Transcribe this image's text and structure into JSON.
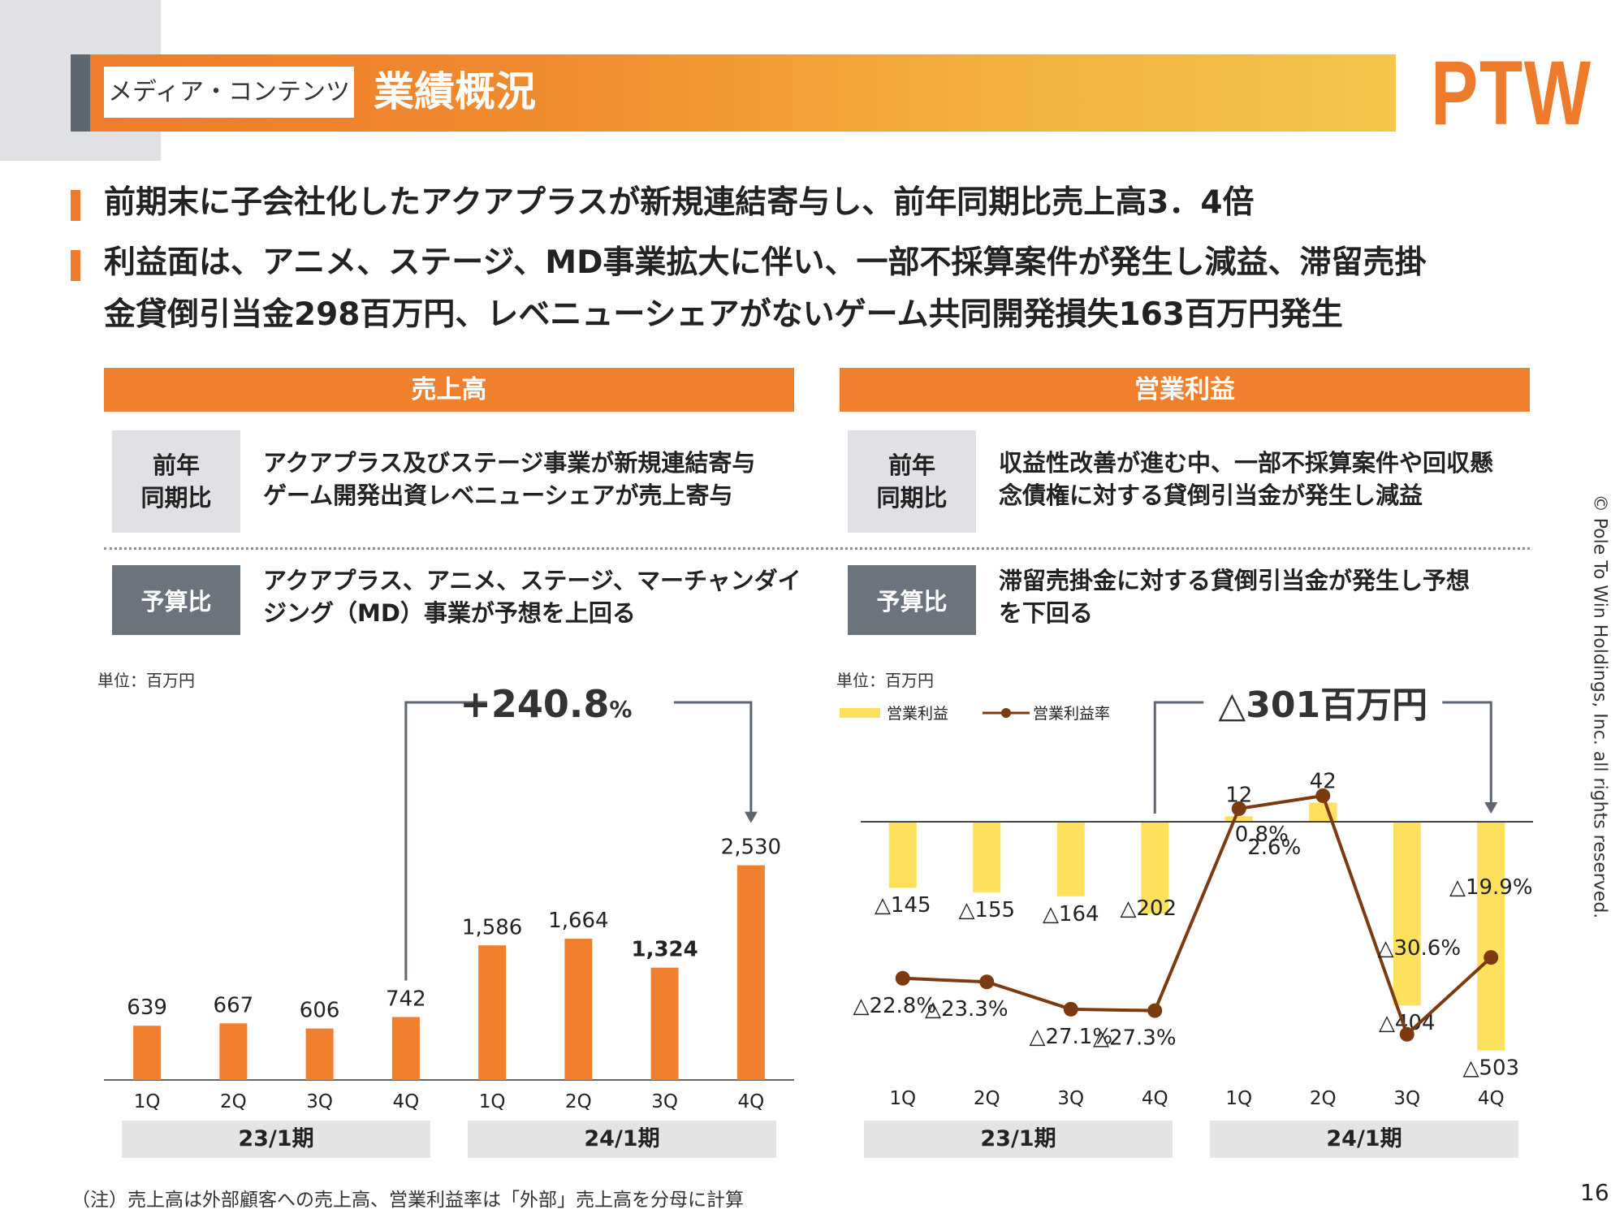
{
  "header": {
    "tag": "メディア・コンテンツ",
    "title": "業績概況",
    "logo": "PTW"
  },
  "bullets": [
    "前期末に子会社化したアクアプラスが新規連結寄与し、前年同期比売上高3．4倍",
    "利益面は、アニメ、ステージ、MD事業拡大に伴い、一部不採算案件が発生し減益、滞留売掛",
    "金貸倒引当金298百万円、レベニューシェアがないゲーム共同開発損失163百万円発生"
  ],
  "sections": {
    "sales": {
      "title": "売上高",
      "yoy_label_1": "前年",
      "yoy_label_2": "同期比",
      "yoy_text_1": "アクアプラス及びステージ事業が新規連結寄与",
      "yoy_text_2": "ゲーム開発出資レベニューシェアが売上寄与",
      "budget_label": "予算比",
      "budget_text_1": "アクアプラス、アニメ、ステージ、マーチャンダイ",
      "budget_text_2": "ジング（MD）事業が予想を上回る"
    },
    "profit": {
      "title": "営業利益",
      "yoy_label_1": "前年",
      "yoy_label_2": "同期比",
      "yoy_text_1": "収益性改善が進む中、一部不採算案件や回収懸",
      "yoy_text_2": "念債権に対する貸倒引当金が発生し減益",
      "budget_label": "予算比",
      "budget_text_1": "滞留売掛金に対する貸倒引当金が発生し予想",
      "budget_text_2": "を下回る"
    }
  },
  "chart_data": [
    {
      "type": "bar",
      "unit_label": "単位：百万円",
      "categories": [
        "1Q",
        "2Q",
        "3Q",
        "4Q",
        "1Q",
        "2Q",
        "3Q",
        "4Q"
      ],
      "periods": [
        "23/1期",
        "24/1期"
      ],
      "values": [
        639,
        667,
        606,
        742,
        1586,
        1664,
        1324,
        2530
      ],
      "value_labels": [
        "639",
        "667",
        "606",
        "742",
        "1,586",
        "1,664",
        "1,324",
        "2,530"
      ],
      "annotation_prefix": "+240.8",
      "annotation_suffix": "%",
      "color": "#f07f2e"
    },
    {
      "type": "bar+line",
      "unit_label": "単位：百万円",
      "categories": [
        "1Q",
        "2Q",
        "3Q",
        "4Q",
        "1Q",
        "2Q",
        "3Q",
        "4Q"
      ],
      "periods": [
        "23/1期",
        "24/1期"
      ],
      "legend": [
        "営業利益",
        "営業利益率"
      ],
      "series": [
        {
          "name": "営業利益",
          "type": "bar",
          "values": [
            -145,
            -155,
            -164,
            -202,
            12,
            42,
            -404,
            -503
          ],
          "value_labels": [
            "△145",
            "△155",
            "△164",
            "△202",
            "12",
            "42",
            "△404",
            "△503"
          ],
          "color": "#fde05c"
        },
        {
          "name": "営業利益率",
          "type": "line",
          "values": [
            -22.8,
            -23.3,
            -27.1,
            -27.3,
            0.8,
            2.6,
            -30.6,
            -19.9
          ],
          "value_labels": [
            "△22.8%",
            "△23.3%",
            "△27.1%",
            "△27.3%",
            "0.8%",
            "2.6%",
            "△30.6%",
            "△19.9%"
          ],
          "color": "#7b3a10"
        }
      ],
      "annotation": "△301百万円"
    }
  ],
  "footnote": "（注）売上高は外部顧客への売上高、営業利益率は「外部」売上高を分母に計算",
  "page_number": "16",
  "copyright": "© Pole To Win Holdings, Inc. all rights reserved."
}
